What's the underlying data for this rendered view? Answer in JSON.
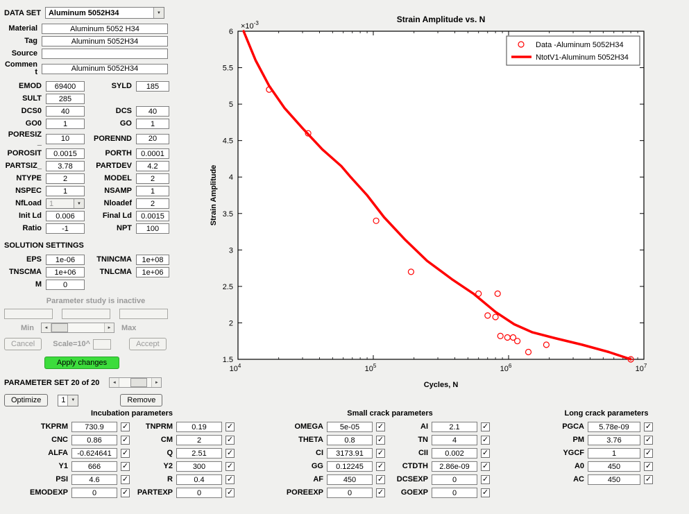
{
  "icons": {
    "check": "✓",
    "dropdown_arrow": "▼",
    "slider_left": "◄",
    "slider_right": "►"
  },
  "colors": {
    "background": "#f0f0ee",
    "apply_green": "#3cdc3c",
    "series_red": "#ff0000"
  },
  "dataset": {
    "label": "DATA SET",
    "value": "Aluminum 5052H34"
  },
  "info_fields": [
    {
      "label": "Material",
      "value": "Aluminum 5052 H34"
    },
    {
      "label": "Tag",
      "value": "Aluminum 5052H34"
    },
    {
      "label": "Source",
      "value": ""
    },
    {
      "label": "Comment",
      "value": "Aluminum 5052H34"
    }
  ],
  "material_rows": [
    {
      "cells": [
        {
          "label": "EMOD",
          "value": "69400"
        },
        {
          "label": "SYLD",
          "value": "185"
        }
      ]
    },
    {
      "cells": [
        {
          "label": "SULT",
          "value": "285"
        }
      ]
    },
    {
      "cells": [
        {
          "label": "DCS0",
          "value": "40"
        },
        {
          "label": "DCS",
          "value": "40"
        }
      ]
    },
    {
      "cells": [
        {
          "label": "GO0",
          "value": "1"
        },
        {
          "label": "GO",
          "value": "1"
        }
      ]
    },
    {
      "cells": [
        {
          "label": "PORESIZ_",
          "value": "10"
        },
        {
          "label": "PORENND",
          "value": "20"
        }
      ]
    },
    {
      "cells": [
        {
          "label": "POROSIT",
          "value": "0.0015"
        },
        {
          "label": "PORTH",
          "value": "0.0001"
        }
      ]
    },
    {
      "cells": [
        {
          "label": "PARTSIZ_",
          "value": "3.78"
        },
        {
          "label": "PARTDEV",
          "value": "4.2"
        }
      ]
    },
    {
      "cells": [
        {
          "label": "NTYPE",
          "value": "2"
        },
        {
          "label": "MODEL",
          "value": "2"
        }
      ]
    },
    {
      "cells": [
        {
          "label": "NSPEC",
          "value": "1"
        },
        {
          "label": "NSAMP",
          "value": "1"
        }
      ]
    },
    {
      "cells": [
        {
          "label": "NfLoad",
          "value": "1",
          "type": "select",
          "disabled": true
        },
        {
          "label": "Nloadef",
          "value": "2"
        }
      ]
    },
    {
      "cells": [
        {
          "label": "Init Ld",
          "value": "0.006"
        },
        {
          "label": "Final Ld",
          "value": "0.0015"
        }
      ]
    },
    {
      "cells": [
        {
          "label": "Ratio",
          "value": "-1"
        },
        {
          "label": "NPT",
          "value": "100"
        }
      ]
    }
  ],
  "solution": {
    "header": "SOLUTION SETTINGS",
    "rows": [
      {
        "cells": [
          {
            "label": "EPS",
            "value": "1e-06"
          },
          {
            "label": "TNINCMA",
            "value": "1e+08"
          }
        ]
      },
      {
        "cells": [
          {
            "label": "TNSCMA",
            "value": "1e+06"
          },
          {
            "label": "TNLCMA",
            "value": "1e+06"
          }
        ]
      },
      {
        "cells": [
          {
            "label": "M",
            "value": "0"
          }
        ]
      }
    ]
  },
  "param_study": {
    "status_text": "Parameter study is inactive",
    "min_label": "Min",
    "max_label": "Max",
    "cancel_label": "Cancel",
    "scale_label": "Scale=10^",
    "accept_label": "Accept",
    "apply_label": "Apply changes"
  },
  "param_set": {
    "label": "PARAMETER SET 20 of 20"
  },
  "actions": {
    "optimize_label": "Optimize",
    "nspec_value": "1",
    "remove_label": "Remove"
  },
  "groups": [
    {
      "id": "incubation",
      "title": "Incubation parameters",
      "columns": 2,
      "pairs": [
        {
          "label": "TKPRM",
          "value": "730.9",
          "checked": true
        },
        {
          "label": "TNPRM",
          "value": "0.19",
          "checked": true
        },
        {
          "label": "CNC",
          "value": "0.86",
          "checked": true
        },
        {
          "label": "CM",
          "value": "2",
          "checked": true
        },
        {
          "label": "ALFA",
          "value": "-0.624641",
          "checked": true
        },
        {
          "label": "Q",
          "value": "2.51",
          "checked": true
        },
        {
          "label": "Y1",
          "value": "666",
          "checked": true
        },
        {
          "label": "Y2",
          "value": "300",
          "checked": true
        },
        {
          "label": "PSI",
          "value": "4.6",
          "checked": true
        },
        {
          "label": "R",
          "value": "0.4",
          "checked": true
        },
        {
          "label": "EMODEXP",
          "value": "0",
          "checked": true
        },
        {
          "label": "PARTEXP",
          "value": "0",
          "checked": true
        }
      ]
    },
    {
      "id": "small-crack",
      "title": "Small crack parameters",
      "columns": 2,
      "pairs": [
        {
          "label": "OMEGA",
          "value": "5e-05",
          "checked": true
        },
        {
          "label": "AI",
          "value": "2.1",
          "checked": true
        },
        {
          "label": "THETA",
          "value": "0.8",
          "checked": true
        },
        {
          "label": "TN",
          "value": "4",
          "checked": true
        },
        {
          "label": "CI",
          "value": "3173.91",
          "checked": true
        },
        {
          "label": "CII",
          "value": "0.002",
          "checked": true
        },
        {
          "label": "GG",
          "value": "0.12245",
          "checked": true
        },
        {
          "label": "CTDTH",
          "value": "2.86e-09",
          "checked": true
        },
        {
          "label": "AF",
          "value": "450",
          "checked": true
        },
        {
          "label": "DCSEXP",
          "value": "0",
          "checked": true
        },
        {
          "label": "POREEXP",
          "value": "0",
          "checked": true
        },
        {
          "label": "GOEXP",
          "value": "0",
          "checked": true
        }
      ]
    },
    {
      "id": "long-crack",
      "title": "Long crack parameters",
      "columns": 1,
      "pairs": [
        {
          "label": "PGCA",
          "value": "5.78e-09",
          "checked": true
        },
        {
          "label": "PM",
          "value": "3.76",
          "checked": true
        },
        {
          "label": "YGCF",
          "value": "1",
          "checked": true
        },
        {
          "label": "A0",
          "value": "450",
          "checked": true
        },
        {
          "label": "AC",
          "value": "450",
          "checked": true
        }
      ]
    }
  ],
  "chart_data": {
    "type": "line",
    "title": "Strain Amplitude vs. N",
    "xlabel": "Cycles, N",
    "ylabel": "Strain Amplitude",
    "y_scale_base": "×10",
    "y_scale_exp": "-3",
    "xscale": "log",
    "xlim": [
      10000,
      10000000
    ],
    "ylim": [
      1.5,
      6
    ],
    "y_unit": "1e-3",
    "yticks": [
      1.5,
      2,
      2.5,
      3,
      3.5,
      4,
      4.5,
      5,
      5.5,
      6
    ],
    "xtick_exponents": [
      4,
      5,
      6,
      7
    ],
    "grid": false,
    "legend_position": "top-right",
    "series": [
      {
        "name": "Data -Aluminum 5052H34",
        "type": "scatter",
        "marker": "circle",
        "color": "#ff0000",
        "points": [
          [
            17000,
            5.2
          ],
          [
            33000,
            4.6
          ],
          [
            105000,
            3.4
          ],
          [
            190000,
            2.7
          ],
          [
            600000,
            2.4
          ],
          [
            830000,
            2.4
          ],
          [
            700000,
            2.1
          ],
          [
            800000,
            2.08
          ],
          [
            870000,
            1.82
          ],
          [
            980000,
            1.8
          ],
          [
            1080000,
            1.8
          ],
          [
            1160000,
            1.75
          ],
          [
            1400000,
            1.6
          ],
          [
            1900000,
            1.7
          ],
          [
            8000000,
            1.5
          ]
        ]
      },
      {
        "name": "NtotV1-Aluminum 5052H34",
        "type": "line",
        "color": "#ff0000",
        "linewidth": 3.5,
        "points": [
          [
            11000,
            6.0
          ],
          [
            13500,
            5.6
          ],
          [
            17000,
            5.25
          ],
          [
            22000,
            4.95
          ],
          [
            30000,
            4.67
          ],
          [
            42000,
            4.38
          ],
          [
            58000,
            4.15
          ],
          [
            68000,
            4.0
          ],
          [
            90000,
            3.75
          ],
          [
            120000,
            3.45
          ],
          [
            170000,
            3.15
          ],
          [
            250000,
            2.85
          ],
          [
            380000,
            2.6
          ],
          [
            550000,
            2.4
          ],
          [
            800000,
            2.15
          ],
          [
            1100000,
            1.98
          ],
          [
            1500000,
            1.87
          ],
          [
            2200000,
            1.79
          ],
          [
            3500000,
            1.7
          ],
          [
            5500000,
            1.6
          ],
          [
            8000000,
            1.5
          ]
        ]
      }
    ]
  }
}
